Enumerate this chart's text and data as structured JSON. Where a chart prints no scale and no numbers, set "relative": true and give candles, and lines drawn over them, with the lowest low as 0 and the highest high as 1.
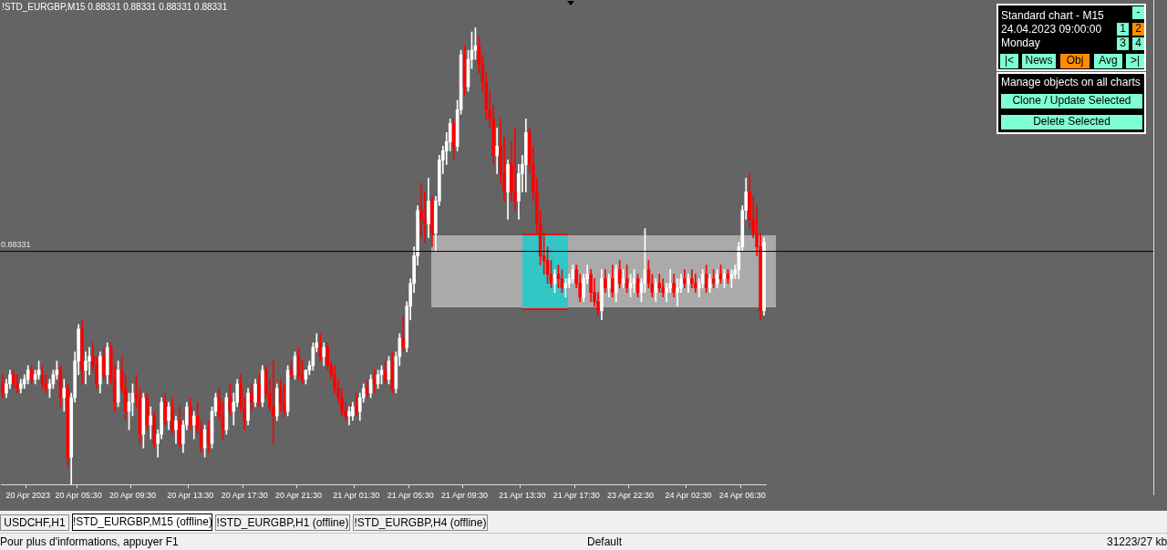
{
  "chart_data": {
    "type": "candlestick",
    "relative": true,
    "title": "!STD_EURGBP,M15  0.88331 0.88331 0.88331 0.88331",
    "categories": [
      null,
      null,
      null,
      null,
      null,
      null,
      null,
      "20 Apr 2023",
      null,
      null,
      null,
      null,
      null,
      null,
      null,
      null,
      null,
      null,
      null,
      null,
      null,
      "20 Apr 05:30",
      null,
      null,
      null,
      null,
      null,
      null,
      null,
      null,
      null,
      null,
      null,
      null,
      null,
      null,
      "20 Apr 09:30",
      null,
      null,
      null,
      null,
      null,
      null,
      null,
      null,
      null,
      null,
      null,
      null,
      null,
      null,
      null,
      "20 Apr 13:30",
      null,
      null,
      null,
      null,
      null,
      null,
      null,
      null,
      null,
      null,
      null,
      null,
      null,
      null,
      "20 Apr 17:30",
      null,
      null,
      null,
      null,
      null,
      null,
      null,
      null,
      null,
      null,
      null,
      null,
      null,
      null,
      "20 Apr 21:30",
      null,
      null,
      null,
      null,
      null,
      null,
      null,
      null,
      null,
      null,
      null,
      null,
      null,
      null,
      null,
      "21 Apr 01:30",
      null,
      null,
      null,
      null,
      null,
      null,
      null,
      null,
      null,
      null,
      null,
      null,
      null,
      null,
      "21 Apr 05:30",
      null,
      null,
      null,
      null,
      null,
      null,
      null,
      null,
      null,
      null,
      null,
      null,
      null,
      null,
      "21 Apr 09:30",
      null,
      null,
      null,
      null,
      null,
      null,
      null,
      null,
      null,
      null,
      null,
      null,
      null,
      null,
      null,
      "21 Apr 13:30",
      null,
      null,
      null,
      null,
      null,
      null,
      null,
      null,
      null,
      null,
      null,
      null,
      null,
      null,
      "21 Apr 17:30",
      null,
      null,
      null,
      null,
      null,
      null,
      null,
      null,
      null,
      null,
      null,
      null,
      null,
      null,
      "23 Apr 22:30",
      null,
      null,
      null,
      null,
      null,
      null,
      null,
      null,
      null,
      null,
      null,
      null,
      null,
      null,
      null,
      "24 Apr 02:30",
      null,
      null,
      null,
      null,
      null,
      null,
      null,
      null,
      null,
      null,
      null,
      null,
      null,
      null,
      "24 Apr 06:30",
      null,
      null,
      null,
      null,
      null,
      null
    ],
    "ohlc": [
      [
        0.22,
        0.24,
        0.19,
        0.2
      ],
      [
        0.2,
        0.23,
        0.19,
        0.22
      ],
      [
        0.22,
        0.25,
        0.21,
        0.24
      ],
      [
        0.24,
        0.25,
        0.21,
        0.22
      ],
      [
        0.22,
        0.24,
        0.2,
        0.21
      ],
      [
        0.21,
        0.23,
        0.2,
        0.22
      ],
      [
        0.22,
        0.24,
        0.21,
        0.23
      ],
      [
        0.23,
        0.26,
        0.22,
        0.25
      ],
      [
        0.25,
        0.26,
        0.22,
        0.23
      ],
      [
        0.23,
        0.25,
        0.22,
        0.24
      ],
      [
        0.24,
        0.27,
        0.23,
        0.25
      ],
      [
        0.24,
        0.26,
        0.21,
        0.22
      ],
      [
        0.22,
        0.24,
        0.2,
        0.21
      ],
      [
        0.21,
        0.23,
        0.19,
        0.22
      ],
      [
        0.22,
        0.25,
        0.21,
        0.24
      ],
      [
        0.24,
        0.27,
        0.23,
        0.25
      ],
      [
        0.25,
        0.26,
        0.17,
        0.19
      ],
      [
        0.19,
        0.23,
        0.16,
        0.21
      ],
      [
        0.21,
        0.22,
        0.04,
        0.06
      ],
      [
        0.06,
        0.2,
        0.0,
        0.19
      ],
      [
        0.19,
        0.29,
        0.18,
        0.27
      ],
      [
        0.27,
        0.35,
        0.24,
        0.34
      ],
      [
        0.34,
        0.36,
        0.22,
        0.25
      ],
      [
        0.25,
        0.29,
        0.22,
        0.27
      ],
      [
        0.27,
        0.3,
        0.24,
        0.28
      ],
      [
        0.28,
        0.31,
        0.25,
        0.26
      ],
      [
        0.26,
        0.28,
        0.21,
        0.22
      ],
      [
        0.22,
        0.29,
        0.2,
        0.28
      ],
      [
        0.28,
        0.3,
        0.23,
        0.24
      ],
      [
        0.24,
        0.31,
        0.22,
        0.3
      ],
      [
        0.3,
        0.31,
        0.22,
        0.23
      ],
      [
        0.23,
        0.26,
        0.16,
        0.18
      ],
      [
        0.18,
        0.27,
        0.17,
        0.25
      ],
      [
        0.25,
        0.28,
        0.2,
        0.21
      ],
      [
        0.21,
        0.24,
        0.14,
        0.16
      ],
      [
        0.16,
        0.2,
        0.12,
        0.18
      ],
      [
        0.18,
        0.22,
        0.15,
        0.2
      ],
      [
        0.2,
        0.24,
        0.17,
        0.19
      ],
      [
        0.19,
        0.21,
        0.09,
        0.11
      ],
      [
        0.11,
        0.2,
        0.08,
        0.19
      ],
      [
        0.19,
        0.2,
        0.12,
        0.13
      ],
      [
        0.13,
        0.17,
        0.1,
        0.15
      ],
      [
        0.15,
        0.16,
        0.08,
        0.09
      ],
      [
        0.09,
        0.12,
        0.06,
        0.11
      ],
      [
        0.11,
        0.19,
        0.1,
        0.18
      ],
      [
        0.18,
        0.2,
        0.13,
        0.14
      ],
      [
        0.14,
        0.18,
        0.12,
        0.17
      ],
      [
        0.17,
        0.19,
        0.11,
        0.12
      ],
      [
        0.12,
        0.15,
        0.09,
        0.14
      ],
      [
        0.14,
        0.17,
        0.08,
        0.09
      ],
      [
        0.09,
        0.14,
        0.07,
        0.13
      ],
      [
        0.13,
        0.18,
        0.12,
        0.17
      ],
      [
        0.17,
        0.19,
        0.12,
        0.13
      ],
      [
        0.13,
        0.16,
        0.1,
        0.15
      ],
      [
        0.15,
        0.18,
        0.11,
        0.12
      ],
      [
        0.12,
        0.14,
        0.07,
        0.08
      ],
      [
        0.08,
        0.13,
        0.06,
        0.12
      ],
      [
        0.12,
        0.14,
        0.07,
        0.09
      ],
      [
        0.09,
        0.17,
        0.08,
        0.16
      ],
      [
        0.16,
        0.2,
        0.15,
        0.19
      ],
      [
        0.19,
        0.21,
        0.14,
        0.15
      ],
      [
        0.15,
        0.18,
        0.1,
        0.12
      ],
      [
        0.12,
        0.2,
        0.11,
        0.19
      ],
      [
        0.19,
        0.22,
        0.15,
        0.16
      ],
      [
        0.16,
        0.2,
        0.13,
        0.18
      ],
      [
        0.18,
        0.23,
        0.17,
        0.22
      ],
      [
        0.22,
        0.24,
        0.16,
        0.17
      ],
      [
        0.17,
        0.19,
        0.12,
        0.14
      ],
      [
        0.14,
        0.21,
        0.13,
        0.2
      ],
      [
        0.2,
        0.22,
        0.16,
        0.18
      ],
      [
        0.18,
        0.23,
        0.17,
        0.22
      ],
      [
        0.22,
        0.24,
        0.17,
        0.18
      ],
      [
        0.18,
        0.26,
        0.17,
        0.25
      ],
      [
        0.25,
        0.26,
        0.19,
        0.2
      ],
      [
        0.2,
        0.23,
        0.16,
        0.17
      ],
      [
        0.17,
        0.27,
        0.09,
        0.15
      ],
      [
        0.15,
        0.22,
        0.14,
        0.21
      ],
      [
        0.21,
        0.23,
        0.16,
        0.18
      ],
      [
        0.18,
        0.22,
        0.15,
        0.16
      ],
      [
        0.16,
        0.26,
        0.15,
        0.25
      ],
      [
        0.25,
        0.27,
        0.23,
        0.24
      ],
      [
        0.24,
        0.29,
        0.23,
        0.28
      ],
      [
        0.28,
        0.3,
        0.23,
        0.24
      ],
      [
        0.24,
        0.27,
        0.22,
        0.23
      ],
      [
        0.23,
        0.25,
        0.22,
        0.25
      ],
      [
        0.25,
        0.27,
        0.24,
        0.26
      ],
      [
        0.26,
        0.31,
        0.25,
        0.3
      ],
      [
        0.3,
        0.33,
        0.29,
        0.31
      ],
      [
        0.31,
        0.33,
        0.27,
        0.28
      ],
      [
        0.28,
        0.31,
        0.26,
        0.3
      ],
      [
        0.3,
        0.31,
        0.25,
        0.26
      ],
      [
        0.26,
        0.27,
        0.23,
        0.24
      ],
      [
        0.24,
        0.26,
        0.2,
        0.21
      ],
      [
        0.21,
        0.23,
        0.18,
        0.19
      ],
      [
        0.19,
        0.21,
        0.15,
        0.16
      ],
      [
        0.16,
        0.18,
        0.14,
        0.15
      ],
      [
        0.15,
        0.17,
        0.13,
        0.16
      ],
      [
        0.15,
        0.18,
        0.14,
        0.17
      ],
      [
        0.17,
        0.2,
        0.15,
        0.16
      ],
      [
        0.16,
        0.2,
        0.14,
        0.19
      ],
      [
        0.19,
        0.22,
        0.18,
        0.21
      ],
      [
        0.21,
        0.23,
        0.19,
        0.2
      ],
      [
        0.2,
        0.24,
        0.19,
        0.23
      ],
      [
        0.23,
        0.25,
        0.2,
        0.22
      ],
      [
        0.22,
        0.25,
        0.21,
        0.24
      ],
      [
        0.24,
        0.26,
        0.22,
        0.25
      ],
      [
        0.25,
        0.27,
        0.22,
        0.23
      ],
      [
        0.23,
        0.28,
        0.22,
        0.27
      ],
      [
        0.27,
        0.29,
        0.2,
        0.21
      ],
      [
        0.21,
        0.29,
        0.2,
        0.28
      ],
      [
        0.28,
        0.33,
        0.26,
        0.32
      ],
      [
        0.32,
        0.37,
        0.29,
        0.3
      ],
      [
        0.3,
        0.4,
        0.29,
        0.39
      ],
      [
        0.39,
        0.45,
        0.36,
        0.44
      ],
      [
        0.44,
        0.52,
        0.42,
        0.5
      ],
      [
        0.5,
        0.61,
        0.48,
        0.6
      ],
      [
        0.6,
        0.66,
        0.54,
        0.58
      ],
      [
        0.58,
        0.64,
        0.53,
        0.57
      ],
      [
        0.57,
        0.67,
        0.54,
        0.62
      ],
      [
        0.62,
        0.63,
        0.52,
        0.55
      ],
      [
        0.55,
        0.63,
        0.51,
        0.62
      ],
      [
        0.62,
        0.72,
        0.61,
        0.71
      ],
      [
        0.71,
        0.74,
        0.68,
        0.73
      ],
      [
        0.73,
        0.77,
        0.7,
        0.75
      ],
      [
        0.75,
        0.8,
        0.73,
        0.79
      ],
      [
        0.79,
        0.8,
        0.71,
        0.74
      ],
      [
        0.74,
        0.84,
        0.73,
        0.82
      ],
      [
        0.82,
        0.95,
        0.81,
        0.94
      ],
      [
        0.94,
        0.96,
        0.85,
        0.87
      ],
      [
        0.87,
        0.95,
        0.86,
        0.93
      ],
      [
        0.93,
        0.99,
        0.91,
        0.95
      ],
      [
        0.95,
        1.0,
        0.93,
        0.96
      ],
      [
        0.96,
        0.98,
        0.9,
        0.92
      ],
      [
        0.92,
        0.94,
        0.86,
        0.88
      ],
      [
        0.88,
        0.9,
        0.8,
        0.82
      ],
      [
        0.82,
        0.86,
        0.78,
        0.8
      ],
      [
        0.8,
        0.83,
        0.7,
        0.72
      ],
      [
        0.72,
        0.78,
        0.68,
        0.74
      ],
      [
        0.74,
        0.8,
        0.66,
        0.68
      ],
      [
        0.68,
        0.76,
        0.62,
        0.64
      ],
      [
        0.64,
        0.71,
        0.58,
        0.7
      ],
      [
        0.7,
        0.75,
        0.62,
        0.64
      ],
      [
        0.64,
        0.78,
        0.6,
        0.62
      ],
      [
        0.62,
        0.7,
        0.58,
        0.68
      ],
      [
        0.68,
        0.72,
        0.64,
        0.7
      ],
      [
        0.7,
        0.8,
        0.64,
        0.77
      ],
      [
        0.77,
        0.78,
        0.68,
        0.7
      ],
      [
        0.7,
        0.74,
        0.62,
        0.64
      ],
      [
        0.64,
        0.67,
        0.55,
        0.57
      ],
      [
        0.57,
        0.6,
        0.48,
        0.5
      ],
      [
        0.5,
        0.55,
        0.46,
        0.49
      ],
      [
        0.49,
        0.52,
        0.44,
        0.46
      ],
      [
        0.46,
        0.49,
        0.43,
        0.44
      ],
      [
        0.44,
        0.47,
        0.42,
        0.46
      ],
      [
        0.46,
        0.48,
        0.43,
        0.45
      ],
      [
        0.45,
        0.47,
        0.42,
        0.43
      ],
      [
        0.43,
        0.45,
        0.41,
        0.44
      ],
      [
        0.44,
        0.46,
        0.43,
        0.45
      ],
      [
        0.45,
        0.48,
        0.44,
        0.47
      ],
      [
        0.47,
        0.48,
        0.43,
        0.44
      ],
      [
        0.44,
        0.46,
        0.4,
        0.41
      ],
      [
        0.41,
        0.46,
        0.4,
        0.45
      ],
      [
        0.45,
        0.48,
        0.44,
        0.46
      ],
      [
        0.46,
        0.47,
        0.4,
        0.42
      ],
      [
        0.42,
        0.45,
        0.39,
        0.4
      ],
      [
        0.4,
        0.42,
        0.37,
        0.38
      ],
      [
        0.38,
        0.47,
        0.36,
        0.45
      ],
      [
        0.45,
        0.47,
        0.42,
        0.43
      ],
      [
        0.43,
        0.46,
        0.41,
        0.45
      ],
      [
        0.45,
        0.48,
        0.41,
        0.42
      ],
      [
        0.42,
        0.48,
        0.4,
        0.47
      ],
      [
        0.47,
        0.49,
        0.43,
        0.44
      ],
      [
        0.44,
        0.47,
        0.43,
        0.45
      ],
      [
        0.45,
        0.48,
        0.42,
        0.43
      ],
      [
        0.43,
        0.46,
        0.41,
        0.44
      ],
      [
        0.44,
        0.47,
        0.42,
        0.45
      ],
      [
        0.45,
        0.46,
        0.41,
        0.42
      ],
      [
        0.42,
        0.45,
        0.4,
        0.44
      ],
      [
        0.44,
        0.56,
        0.42,
        0.47
      ],
      [
        0.47,
        0.49,
        0.43,
        0.44
      ],
      [
        0.44,
        0.46,
        0.41,
        0.42
      ],
      [
        0.42,
        0.45,
        0.4,
        0.44
      ],
      [
        0.44,
        0.46,
        0.42,
        0.43
      ],
      [
        0.43,
        0.45,
        0.41,
        0.42
      ],
      [
        0.42,
        0.44,
        0.4,
        0.43
      ],
      [
        0.43,
        0.47,
        0.42,
        0.44
      ],
      [
        0.44,
        0.46,
        0.41,
        0.42
      ],
      [
        0.42,
        0.45,
        0.39,
        0.43
      ],
      [
        0.43,
        0.46,
        0.42,
        0.45
      ],
      [
        0.45,
        0.47,
        0.43,
        0.44
      ],
      [
        0.44,
        0.46,
        0.42,
        0.45
      ],
      [
        0.45,
        0.47,
        0.43,
        0.44
      ],
      [
        0.44,
        0.46,
        0.42,
        0.43
      ],
      [
        0.43,
        0.45,
        0.41,
        0.44
      ],
      [
        0.44,
        0.47,
        0.43,
        0.46
      ],
      [
        0.46,
        0.48,
        0.42,
        0.43
      ],
      [
        0.43,
        0.46,
        0.42,
        0.45
      ],
      [
        0.45,
        0.47,
        0.43,
        0.44
      ],
      [
        0.44,
        0.47,
        0.43,
        0.46
      ],
      [
        0.46,
        0.48,
        0.44,
        0.45
      ],
      [
        0.45,
        0.47,
        0.43,
        0.46
      ],
      [
        0.46,
        0.47,
        0.44,
        0.45
      ],
      [
        0.45,
        0.47,
        0.43,
        0.46
      ],
      [
        0.46,
        0.48,
        0.45,
        0.47
      ],
      [
        0.47,
        0.53,
        0.45,
        0.52
      ],
      [
        0.52,
        0.61,
        0.51,
        0.6
      ],
      [
        0.6,
        0.67,
        0.58,
        0.64
      ],
      [
        0.64,
        0.68,
        0.56,
        0.58
      ],
      [
        0.58,
        0.63,
        0.54,
        0.55
      ],
      [
        0.55,
        0.61,
        0.5,
        0.52
      ],
      [
        0.52,
        0.55,
        0.36,
        0.38
      ],
      [
        0.38,
        0.54,
        0.37,
        0.53
      ]
    ],
    "colors": [
      "#ff0000",
      "#ffffff",
      "#ffffff",
      "#ff0000",
      "#ff0000",
      "#ffffff",
      "#ffffff",
      "#ffffff",
      "#ff0000",
      "#ffffff",
      "#ffffff",
      "#ff0000",
      "#ff0000",
      "#ffffff",
      "#ffffff",
      "#ffffff",
      "#ff0000",
      "#ffffff",
      "#ff0000",
      "#ffffff",
      "#ffffff",
      "#ffffff",
      "#ff0000",
      "#ffffff",
      "#ffffff",
      "#ff0000",
      "#ff0000",
      "#ffffff",
      "#ff0000",
      "#ffffff",
      "#ff0000",
      "#ff0000",
      "#ffffff",
      "#ff0000",
      "#ff0000",
      "#ffffff",
      "#ffffff",
      "#ff0000",
      "#ff0000",
      "#ffffff",
      "#ff0000",
      "#ffffff",
      "#ff0000",
      "#ffffff",
      "#ffffff",
      "#ff0000",
      "#ffffff",
      "#ff0000",
      "#ffffff",
      "#ff0000",
      "#ffffff",
      "#ffffff",
      "#ff0000",
      "#ffffff",
      "#ff0000",
      "#ff0000",
      "#ffffff",
      "#ff0000",
      "#ffffff",
      "#ffffff",
      "#ff0000",
      "#ff0000",
      "#ffffff",
      "#ff0000",
      "#ffffff",
      "#ffffff",
      "#ff0000",
      "#ff0000",
      "#ffffff",
      "#ff0000",
      "#ffffff",
      "#ff0000",
      "#ffffff",
      "#ff0000",
      "#ff0000",
      "#ff0000",
      "#ffffff",
      "#ff0000",
      "#ff0000",
      "#ffffff",
      "#ff0000",
      "#ffffff",
      "#ff0000",
      "#ff0000",
      "#ffffff",
      "#ffffff",
      "#ffffff",
      "#ffffff",
      "#ff0000",
      "#ffffff",
      "#ff0000",
      "#ff0000",
      "#ff0000",
      "#ff0000",
      "#ff0000",
      "#ff0000",
      "#ffffff",
      "#ffffff",
      "#ff0000",
      "#ffffff",
      "#ffffff",
      "#ff0000",
      "#ffffff",
      "#ff0000",
      "#ffffff",
      "#ffffff",
      "#ff0000",
      "#ffffff",
      "#ff0000",
      "#ffffff",
      "#ffffff",
      "#ff0000",
      "#ffffff",
      "#ffffff",
      "#ffffff",
      "#ffffff",
      "#ff0000",
      "#ff0000",
      "#ffffff",
      "#ff0000",
      "#ffffff",
      "#ffffff",
      "#ffffff",
      "#ffffff",
      "#ffffff",
      "#ff0000",
      "#ffffff",
      "#ffffff",
      "#ff0000",
      "#ffffff",
      "#ffffff",
      "#ffffff",
      "#ff0000",
      "#ff0000",
      "#ff0000",
      "#ff0000",
      "#ff0000",
      "#ffffff",
      "#ff0000",
      "#ff0000",
      "#ffffff",
      "#ff0000",
      "#ff0000",
      "#ffffff",
      "#ffffff",
      "#ffffff",
      "#ff0000",
      "#ff0000",
      "#ff0000",
      "#ff0000",
      "#ff0000",
      "#ff0000",
      "#ff0000",
      "#ffffff",
      "#ff0000",
      "#ff0000",
      "#ffffff",
      "#ffffff",
      "#ffffff",
      "#ff0000",
      "#ff0000",
      "#ffffff",
      "#ffffff",
      "#ff0000",
      "#ff0000",
      "#ff0000",
      "#ffffff",
      "#ff0000",
      "#ffffff",
      "#ff0000",
      "#ffffff",
      "#ff0000",
      "#ffffff",
      "#ff0000",
      "#ffffff",
      "#ffffff",
      "#ff0000",
      "#ffffff",
      "#ffffff",
      "#ff0000",
      "#ff0000",
      "#ffffff",
      "#ff0000",
      "#ff0000",
      "#ffffff",
      "#ffffff",
      "#ff0000",
      "#ffffff",
      "#ffffff",
      "#ff0000",
      "#ffffff",
      "#ff0000",
      "#ff0000",
      "#ffffff",
      "#ffffff",
      "#ff0000",
      "#ffffff",
      "#ff0000",
      "#ffffff",
      "#ff0000",
      "#ffffff",
      "#ff0000",
      "#ffffff",
      "#ffffff",
      "#ffffff",
      "#ffffff",
      "#ffffff",
      "#ff0000",
      "#ff0000",
      "#ff0000",
      "#ff0000",
      "#ffffff"
    ],
    "ref_lines": [
      {
        "axis": "y",
        "value": 0.51,
        "color": "#000000"
      }
    ],
    "legend": false,
    "grid": false,
    "annotations": [
      "Standard chart - M15",
      "24.04.2023    09:00:00",
      "Monday",
      "-",
      "1",
      "2",
      "3",
      "4",
      "|<",
      "News",
      "Obj",
      "Avg",
      ">|",
      "Manage objects on all charts",
      "Clone / Update Selected",
      "Delete Selected",
      "USDCHF,H1",
      "!STD_EURGBP,M15 (offline)",
      "!STD_EURGBP,H1 (offline)",
      "!STD_EURGBP,H4 (offline)",
      "Pour plus d'informations, appuyer F1",
      "Default",
      "31223/27 kb",
      "0.88331"
    ]
  }
}
